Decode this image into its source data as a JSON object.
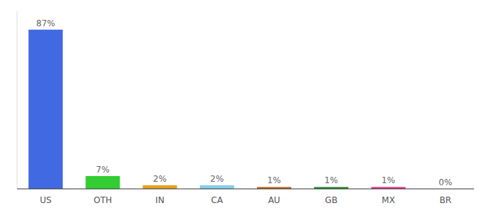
{
  "chart_data": {
    "type": "bar",
    "categories": [
      "US",
      "OTH",
      "IN",
      "CA",
      "AU",
      "GB",
      "MX",
      "BR"
    ],
    "values": [
      87,
      7,
      2,
      2,
      1,
      1,
      1,
      0
    ],
    "value_labels": [
      "87%",
      "7%",
      "2%",
      "2%",
      "1%",
      "1%",
      "1%",
      "0%"
    ],
    "data_labels": true,
    "colors": [
      "#4169e1",
      "#32cd32",
      "#e8a020",
      "#87ceeb",
      "#c06020",
      "#228b22",
      "#e83080",
      "#888888"
    ],
    "ylim": [
      0,
      97
    ],
    "grid": false,
    "tick_labels": "x"
  }
}
